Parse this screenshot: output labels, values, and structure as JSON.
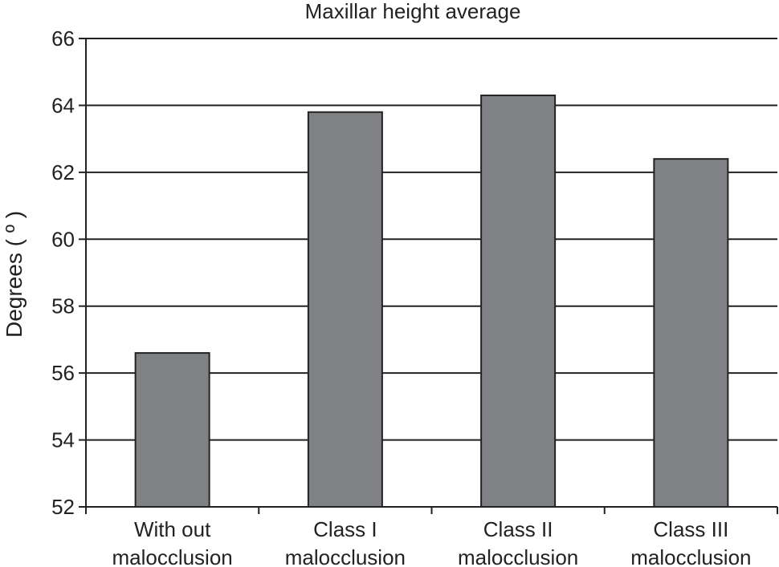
{
  "chart_data": {
    "type": "bar",
    "title": "Maxillar height average",
    "ylabel": "Degrees ( º )",
    "xlabel": "",
    "categories": [
      [
        "With out",
        "malocclusion"
      ],
      [
        "Class I",
        "malocclusion"
      ],
      [
        "Class II",
        "malocclusion"
      ],
      [
        "Class III",
        "malocclusion"
      ]
    ],
    "values": [
      56.6,
      63.8,
      64.3,
      62.4
    ],
    "ylim": [
      52,
      66
    ],
    "yticks": [
      52,
      54,
      56,
      58,
      60,
      62,
      64,
      66
    ],
    "grid": true,
    "bar_color": "#808184",
    "legend": "none"
  }
}
